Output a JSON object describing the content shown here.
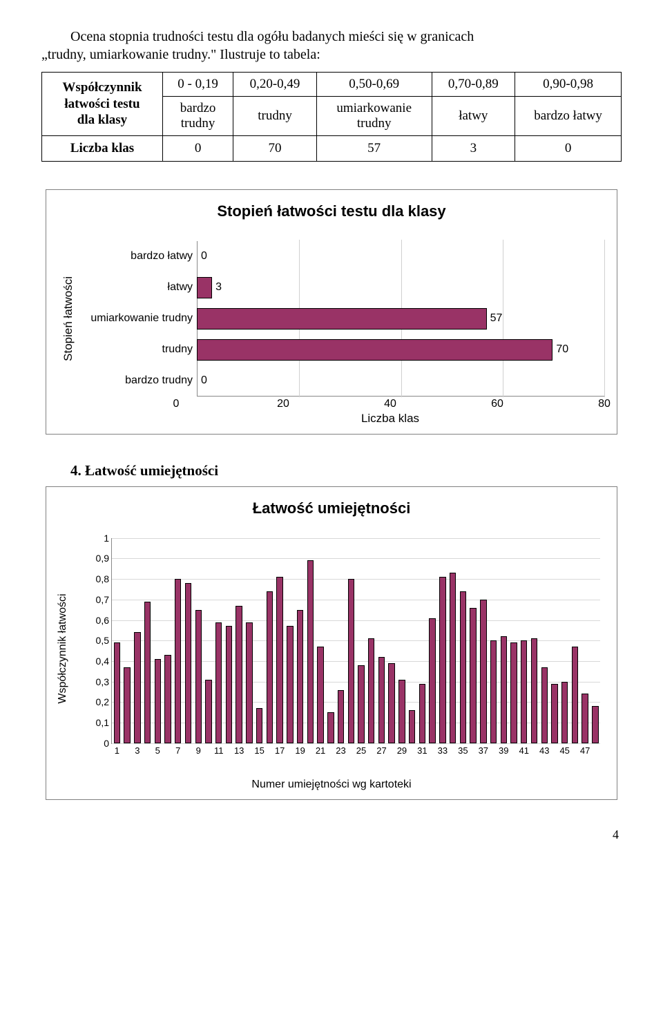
{
  "intro": {
    "line1": "Ocena stopnia trudności testu dla ogółu badanych mieści się w granicach",
    "line2": "„trudny, umiarkowanie trudny.\" Ilustruje to tabela:"
  },
  "table1": {
    "rowhead1_l1": "Współczynnik",
    "rowhead1_l2": "łatwości testu",
    "rowhead1_l3": "dla klasy",
    "cols": [
      {
        "range": "0 - 0,19",
        "label_l1": "bardzo",
        "label_l2": "trudny"
      },
      {
        "range": "0,20-0,49",
        "label_l1": "trudny",
        "label_l2": ""
      },
      {
        "range": "0,50-0,69",
        "label_l1": "umiarkowanie",
        "label_l2": "trudny"
      },
      {
        "range": "0,70-0,89",
        "label_l1": "łatwy",
        "label_l2": ""
      },
      {
        "range": "0,90-0,98",
        "label_l1": "bardzo łatwy",
        "label_l2": ""
      }
    ],
    "row2head": "Liczba klas",
    "row2": [
      "0",
      "70",
      "57",
      "3",
      "0"
    ]
  },
  "chart1": {
    "title": "Stopień łatwości testu dla klasy",
    "ylabel": "Stopień łatwości",
    "xlabel": "Liczba klas",
    "xmax": 80,
    "xticks": [
      0,
      20,
      40,
      60,
      80
    ],
    "bar_color": "#993366",
    "categories": [
      {
        "label": "bardzo łatwy",
        "value": 0
      },
      {
        "label": "łatwy",
        "value": 3
      },
      {
        "label": "umiarkowanie trudny",
        "value": 57
      },
      {
        "label": "trudny",
        "value": 70
      },
      {
        "label": "bardzo trudny",
        "value": 0
      }
    ]
  },
  "section4": "4. Łatwość umiejętności",
  "chart2": {
    "title": "Łatwość umiejętności",
    "ylabel": "Współczynnik łatwości",
    "xlabel": "Numer umiejętności wg kartoteki",
    "ymax": 1,
    "yticks": [
      "0",
      "0,1",
      "0,2",
      "0,3",
      "0,4",
      "0,5",
      "0,6",
      "0,7",
      "0,8",
      "0,9",
      "1"
    ],
    "bar_color": "#993366",
    "xticks": [
      1,
      3,
      5,
      7,
      9,
      11,
      13,
      15,
      17,
      19,
      21,
      23,
      25,
      27,
      29,
      31,
      33,
      35,
      37,
      39,
      41,
      43,
      45,
      47
    ],
    "values": [
      0.49,
      0.37,
      0.54,
      0.69,
      0.41,
      0.43,
      0.8,
      0.78,
      0.65,
      0.31,
      0.59,
      0.57,
      0.67,
      0.59,
      0.17,
      0.74,
      0.81,
      0.57,
      0.65,
      0.89,
      0.47,
      0.15,
      0.26,
      0.8,
      0.38,
      0.51,
      0.42,
      0.39,
      0.31,
      0.16,
      0.29,
      0.61,
      0.81,
      0.83,
      0.74,
      0.66,
      0.7,
      0.5,
      0.52,
      0.49,
      0.5,
      0.51,
      0.37,
      0.29,
      0.3,
      0.47,
      0.24,
      0.18
    ]
  },
  "page_number": "4"
}
